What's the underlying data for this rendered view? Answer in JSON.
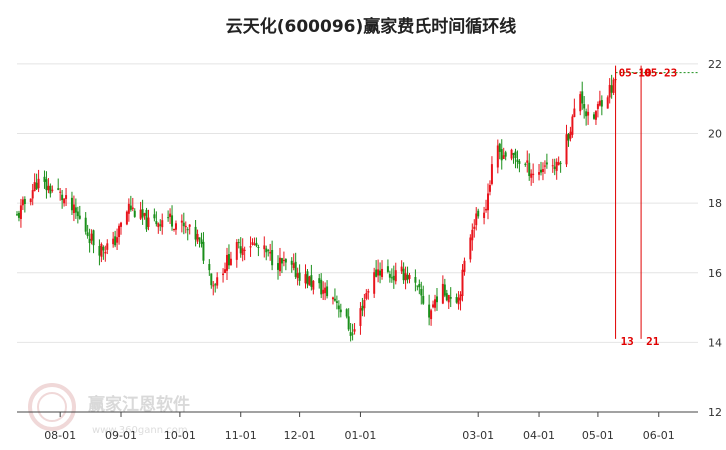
{
  "watermark": {
    "text": "赢家江恩软件",
    "url": "www.360gann.com"
  },
  "chart_data": {
    "type": "candlestick",
    "title": "云天化(600096)赢家费氏时间循环线",
    "xlabel": "",
    "ylabel": "",
    "ylim": [
      12,
      22.4
    ],
    "yticks": [
      12,
      14,
      16,
      18,
      20,
      22
    ],
    "grid": true,
    "x_tick_labels": [
      "08-01",
      "09-01",
      "10-01",
      "11-01",
      "12-01",
      "01-01",
      "03-01",
      "04-01",
      "05-01",
      "06-01"
    ],
    "x_tick_dates": [
      "2023-08-01",
      "2023-09-01",
      "2023-10-01",
      "2023-11-01",
      "2023-12-01",
      "2024-01-01",
      "2024-03-01",
      "2024-04-01",
      "2024-05-01",
      "2024-06-01"
    ],
    "x_range": [
      "2023-07-10",
      "2024-06-21"
    ],
    "colors": {
      "up": "#e8141c",
      "down": "#1a8f1a",
      "cycle_line": "#e00000",
      "level_line": "#1a8f1a"
    },
    "reference_level": 21.75,
    "cycle_lines": [
      {
        "date": "2024-05-10",
        "label": "13",
        "top_label": "05-10"
      },
      {
        "date": "2024-05-23",
        "label": "21",
        "top_label": "05-23"
      }
    ],
    "trend_anchors": [
      [
        "2023-07-10",
        17.6
      ],
      [
        "2023-07-20",
        18.6
      ],
      [
        "2023-07-31",
        18.3
      ],
      [
        "2023-08-10",
        17.6
      ],
      [
        "2023-08-20",
        16.7
      ],
      [
        "2023-08-28",
        16.8
      ],
      [
        "2023-09-05",
        17.9
      ],
      [
        "2023-09-15",
        17.4
      ],
      [
        "2023-09-25",
        17.6
      ],
      [
        "2023-10-10",
        17.0
      ],
      [
        "2023-10-18",
        15.7
      ],
      [
        "2023-10-28",
        16.6
      ],
      [
        "2023-11-05",
        16.9
      ],
      [
        "2023-11-20",
        16.3
      ],
      [
        "2023-11-30",
        16.0
      ],
      [
        "2023-12-10",
        15.6
      ],
      [
        "2023-12-20",
        15.2
      ],
      [
        "2023-12-28",
        14.2
      ],
      [
        "2024-01-05",
        15.6
      ],
      [
        "2024-01-10",
        16.1
      ],
      [
        "2024-01-18",
        15.9
      ],
      [
        "2024-01-24",
        16.0
      ],
      [
        "2024-02-01",
        15.3
      ],
      [
        "2024-02-05",
        14.8
      ],
      [
        "2024-02-10",
        15.5
      ],
      [
        "2024-02-20",
        15.3
      ],
      [
        "2024-02-27",
        17.4
      ],
      [
        "2024-03-05",
        18.0
      ],
      [
        "2024-03-10",
        19.5
      ],
      [
        "2024-03-20",
        19.3
      ],
      [
        "2024-03-31",
        18.8
      ],
      [
        "2024-04-05",
        19.2
      ],
      [
        "2024-04-10",
        19.0
      ],
      [
        "2024-04-16",
        20.0
      ],
      [
        "2024-04-22",
        21.2
      ],
      [
        "2024-04-27",
        20.2
      ],
      [
        "2024-05-03",
        21.0
      ],
      [
        "2024-05-09",
        21.4
      ],
      [
        "2024-05-10",
        21.6
      ]
    ]
  }
}
